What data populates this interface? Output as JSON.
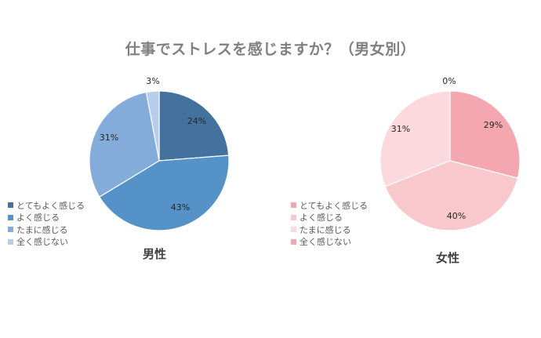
{
  "title": "仕事でストレスを感じますか？（男女別）",
  "chart_data": [
    {
      "type": "pie",
      "label": "男性",
      "categories": [
        "とてもよく感じる",
        "よく感じる",
        "たまに感じる",
        "全く感じない"
      ],
      "values": [
        24,
        43,
        31,
        3
      ],
      "data_labels": [
        "24%",
        "43%",
        "31%",
        "3%"
      ],
      "colors": [
        "#44729f",
        "#5592c8",
        "#84acdb",
        "#b8cdea"
      ],
      "legend_position": "left"
    },
    {
      "type": "pie",
      "label": "女性",
      "categories": [
        "とてもよく感じる",
        "よく感じる",
        "たまに感じる",
        "全く感じない"
      ],
      "values": [
        29,
        40,
        31,
        0
      ],
      "data_labels": [
        "29%",
        "40%",
        "31%",
        "0%"
      ],
      "colors": [
        "#f4a7ae",
        "#f8c8cd",
        "#fbd9dc",
        "#f4a7ae"
      ],
      "legend_position": "left"
    }
  ]
}
